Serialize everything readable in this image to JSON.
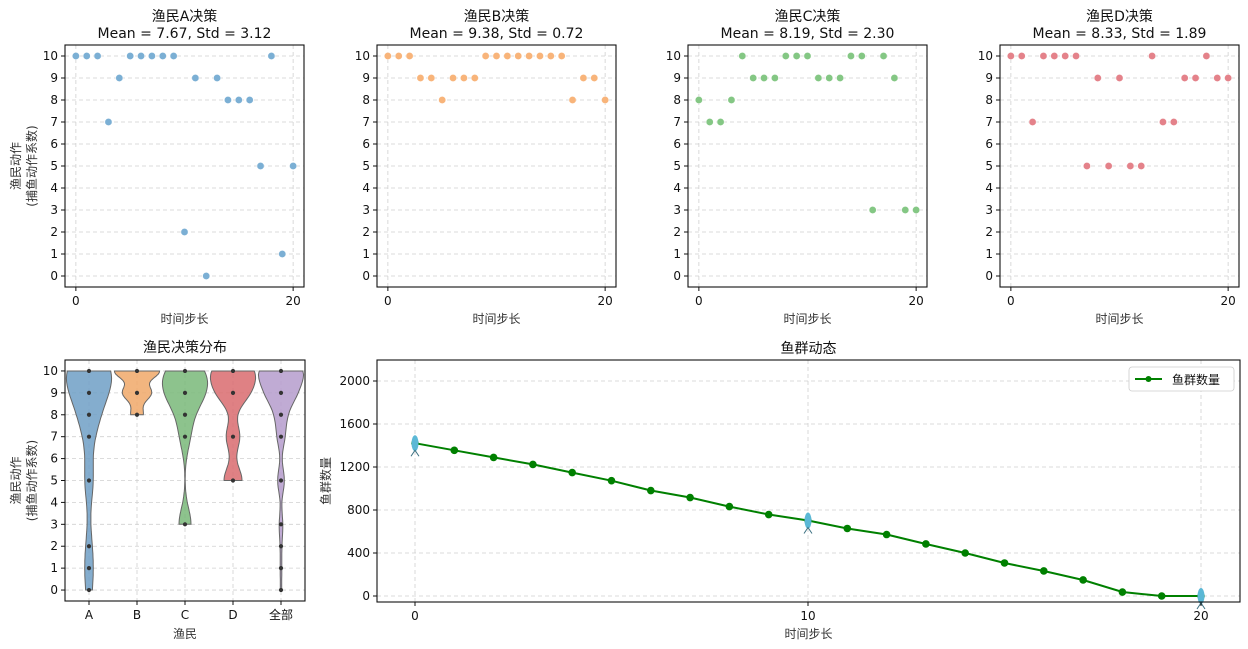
{
  "chart_data": [
    {
      "type": "scatter",
      "id": "fisherA",
      "title": "渔民A决策",
      "subtitle": "Mean = 7.67, Std = 3.12",
      "xlabel": "时间步长",
      "ylabel": "渔民动作",
      "ylabel2": "(捕鱼动作系数)",
      "x": [
        0,
        1,
        2,
        3,
        4,
        5,
        6,
        7,
        8,
        9,
        10,
        11,
        12,
        13,
        14,
        15,
        16,
        17,
        18,
        19,
        20
      ],
      "values": [
        10,
        10,
        10,
        7,
        9,
        10,
        10,
        10,
        10,
        10,
        2,
        9,
        0,
        9,
        8,
        8,
        8,
        5,
        10,
        1,
        5
      ],
      "color": "#7bafd4",
      "xlim": [
        -1,
        21
      ],
      "ylim": [
        -0.5,
        10.5
      ],
      "xticks": [
        0,
        20
      ],
      "yticks": [
        0,
        1,
        2,
        3,
        4,
        5,
        6,
        7,
        8,
        9,
        10
      ],
      "grid": true
    },
    {
      "type": "scatter",
      "id": "fisherB",
      "title": "渔民B决策",
      "subtitle": "Mean = 9.38, Std = 0.72",
      "xlabel": "时间步长",
      "x": [
        0,
        1,
        2,
        3,
        4,
        5,
        6,
        7,
        8,
        9,
        10,
        11,
        12,
        13,
        14,
        15,
        16,
        17,
        18,
        19,
        20
      ],
      "values": [
        10,
        10,
        10,
        9,
        9,
        8,
        9,
        9,
        9,
        10,
        10,
        10,
        10,
        10,
        10,
        10,
        10,
        8,
        9,
        9,
        8
      ],
      "color": "#f8b47a",
      "xlim": [
        -1,
        21
      ],
      "ylim": [
        -0.5,
        10.5
      ],
      "xticks": [
        0,
        20
      ],
      "yticks": [
        0,
        1,
        2,
        3,
        4,
        5,
        6,
        7,
        8,
        9,
        10
      ],
      "grid": true
    },
    {
      "type": "scatter",
      "id": "fisherC",
      "title": "渔民C决策",
      "subtitle": "Mean = 8.19, Std = 2.30",
      "xlabel": "时间步长",
      "x": [
        0,
        1,
        2,
        3,
        4,
        5,
        6,
        7,
        8,
        9,
        10,
        11,
        12,
        13,
        14,
        15,
        16,
        17,
        18,
        19,
        20
      ],
      "values": [
        8,
        7,
        7,
        8,
        10,
        9,
        9,
        9,
        10,
        10,
        10,
        9,
        9,
        9,
        10,
        10,
        3,
        10,
        9,
        3,
        3
      ],
      "color": "#84c784",
      "xlim": [
        -1,
        21
      ],
      "ylim": [
        -0.5,
        10.5
      ],
      "xticks": [
        0,
        20
      ],
      "yticks": [
        0,
        1,
        2,
        3,
        4,
        5,
        6,
        7,
        8,
        9,
        10
      ],
      "grid": true
    },
    {
      "type": "scatter",
      "id": "fisherD",
      "title": "渔民D决策",
      "subtitle": "Mean = 8.33, Std = 1.89",
      "xlabel": "时间步长",
      "x": [
        0,
        1,
        2,
        3,
        4,
        5,
        6,
        7,
        8,
        9,
        10,
        11,
        12,
        13,
        14,
        15,
        16,
        17,
        18,
        19,
        20
      ],
      "values": [
        10,
        10,
        7,
        10,
        10,
        10,
        10,
        5,
        9,
        5,
        9,
        5,
        5,
        10,
        7,
        7,
        9,
        9,
        10,
        9,
        9
      ],
      "color": "#e4828a",
      "xlim": [
        -1,
        21
      ],
      "ylim": [
        -0.5,
        10.5
      ],
      "xticks": [
        0,
        20
      ],
      "yticks": [
        0,
        1,
        2,
        3,
        4,
        5,
        6,
        7,
        8,
        9,
        10
      ],
      "grid": true
    },
    {
      "type": "violin",
      "id": "distribution",
      "title": "渔民决策分布",
      "xlabel": "渔民",
      "ylabel": "渔民动作",
      "ylabel2": "(捕鱼动作系数)",
      "categories": [
        "A",
        "B",
        "C",
        "D",
        "全部"
      ],
      "colors": [
        "#6f9fc6",
        "#f0a868",
        "#79b879",
        "#d96b6f",
        "#b59ccd"
      ],
      "series": [
        {
          "name": "A",
          "values": [
            10,
            10,
            10,
            7,
            9,
            10,
            10,
            10,
            10,
            10,
            2,
            9,
            0,
            9,
            8,
            8,
            8,
            5,
            10,
            1,
            5
          ]
        },
        {
          "name": "B",
          "values": [
            10,
            10,
            10,
            9,
            9,
            8,
            9,
            9,
            9,
            10,
            10,
            10,
            10,
            10,
            10,
            10,
            10,
            8,
            9,
            9,
            8
          ]
        },
        {
          "name": "C",
          "values": [
            8,
            7,
            7,
            8,
            10,
            9,
            9,
            9,
            10,
            10,
            10,
            9,
            9,
            9,
            10,
            10,
            3,
            10,
            9,
            3,
            3
          ]
        },
        {
          "name": "D",
          "values": [
            10,
            10,
            7,
            10,
            10,
            10,
            10,
            5,
            9,
            5,
            9,
            5,
            5,
            10,
            7,
            7,
            9,
            9,
            10,
            9,
            9
          ]
        },
        {
          "name": "全部",
          "values": []
        }
      ],
      "ylim": [
        -0.5,
        10.5
      ],
      "yticks": [
        0,
        1,
        2,
        3,
        4,
        5,
        6,
        7,
        8,
        9,
        10
      ],
      "grid": true
    },
    {
      "type": "line",
      "id": "fish",
      "title": "鱼群动态",
      "xlabel": "时间步长",
      "ylabel": "鱼群数量",
      "legend": "鱼群数量",
      "legend_position": "top-right",
      "color": "#008000",
      "marker_color": "#5bb8d6",
      "x": [
        0,
        1,
        2,
        3,
        4,
        5,
        6,
        7,
        8,
        9,
        10,
        11,
        12,
        13,
        14,
        15,
        16,
        17,
        18,
        19,
        20
      ],
      "values": [
        1421,
        1355,
        1289,
        1224,
        1148,
        1073,
        981,
        916,
        832,
        758,
        702,
        628,
        572,
        484,
        400,
        307,
        233,
        149,
        37,
        0,
        0
      ],
      "fish_marker_x": [
        0,
        10,
        20
      ],
      "xlim": [
        -1.5,
        21
      ],
      "ylim": [
        -50,
        2200
      ],
      "xticks": [
        0,
        10,
        20
      ],
      "yticks": [
        0,
        400,
        800,
        1200,
        1600,
        2000
      ],
      "grid": true
    }
  ]
}
